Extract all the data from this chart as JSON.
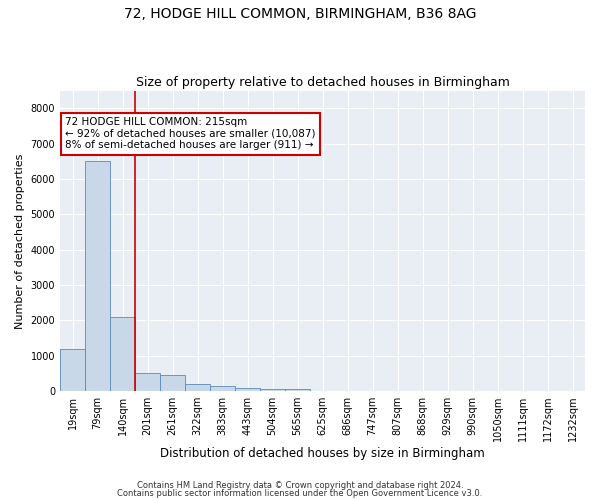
{
  "title1": "72, HODGE HILL COMMON, BIRMINGHAM, B36 8AG",
  "title2": "Size of property relative to detached houses in Birmingham",
  "xlabel": "Distribution of detached houses by size in Birmingham",
  "ylabel": "Number of detached properties",
  "footnote1": "Contains HM Land Registry data © Crown copyright and database right 2024.",
  "footnote2": "Contains public sector information licensed under the Open Government Licence v3.0.",
  "bin_labels": [
    "19sqm",
    "79sqm",
    "140sqm",
    "201sqm",
    "261sqm",
    "322sqm",
    "383sqm",
    "443sqm",
    "504sqm",
    "565sqm",
    "625sqm",
    "686sqm",
    "747sqm",
    "807sqm",
    "868sqm",
    "929sqm",
    "990sqm",
    "1050sqm",
    "1111sqm",
    "1172sqm",
    "1232sqm"
  ],
  "bar_heights": [
    1200,
    6500,
    2100,
    500,
    450,
    200,
    130,
    90,
    55,
    60,
    0,
    0,
    0,
    0,
    0,
    0,
    0,
    0,
    0,
    0,
    0
  ],
  "bar_color": "#c8d8e8",
  "bar_edgecolor": "#5a8ab8",
  "property_line_x": 2.5,
  "property_line_color": "#cc0000",
  "annotation_text": "72 HODGE HILL COMMON: 215sqm\n← 92% of detached houses are smaller (10,087)\n8% of semi-detached houses are larger (911) →",
  "annotation_box_color": "#cc0000",
  "annotation_text_color": "#000000",
  "ylim": [
    0,
    8500
  ],
  "yticks": [
    0,
    1000,
    2000,
    3000,
    4000,
    5000,
    6000,
    7000,
    8000
  ],
  "bg_color": "#e8eef4",
  "grid_color": "#ffffff",
  "title1_fontsize": 10,
  "title2_fontsize": 9,
  "xlabel_fontsize": 8.5,
  "ylabel_fontsize": 8,
  "tick_fontsize": 7,
  "annotation_fontsize": 7.5,
  "footnote_fontsize": 6
}
